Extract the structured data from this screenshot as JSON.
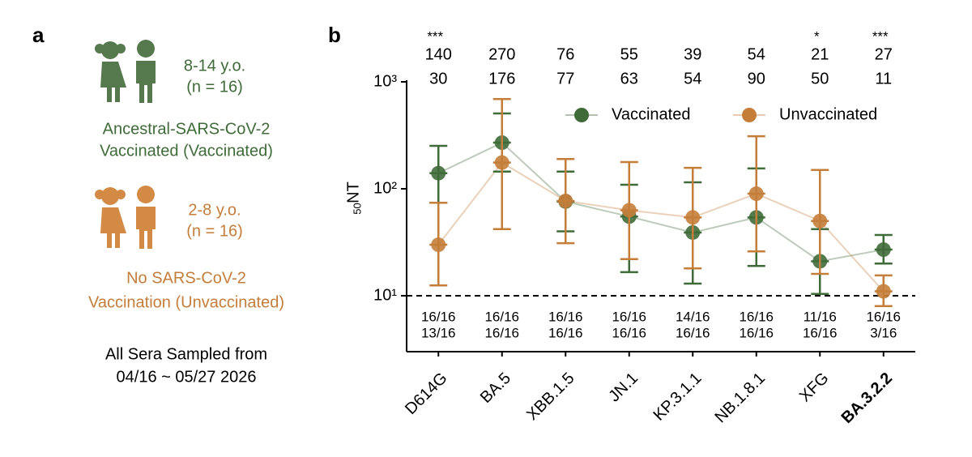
{
  "panel_a": {
    "label": "a",
    "group_1": {
      "age": "8-14 y.o.",
      "n": "(n = 16)",
      "desc": [
        "Ancestral-SARS-CoV-2",
        "Vaccinated (Vaccinated)"
      ]
    },
    "group_2": {
      "age": "2-8 y.o.",
      "n": "(n = 16)",
      "desc": [
        "No SARS-CoV-2",
        "Vaccination (Unvaccinated)"
      ]
    },
    "footer": [
      "All Sera Sampled from",
      "04/16 ~ 05/27 2026"
    ]
  },
  "chart_data": {
    "type": "line",
    "panel_label": "b",
    "ylabel": "NT",
    "ylabel_sub": "50",
    "log_y": true,
    "ylim": [
      3,
      1000
    ],
    "yticks": [
      {
        "value": 10,
        "label": "10¹"
      },
      {
        "value": 100,
        "label": "10²"
      },
      {
        "value": 1000,
        "label": "10³"
      }
    ],
    "threshold": 10,
    "legend": "upper right",
    "bold_category": 7,
    "categories": [
      "D614G",
      "BA.5",
      "XBB.1.5",
      "JN.1",
      "KP.3.1.1",
      "NB.1.8.1",
      "XFG",
      "BA.3.2.2"
    ],
    "significance": [
      "***",
      null,
      null,
      null,
      null,
      null,
      "*",
      "***"
    ],
    "series": [
      {
        "name": "Vaccinated",
        "color": "#3f6b38",
        "values": [
          140,
          270,
          76,
          55,
          39,
          54,
          21,
          27
        ],
        "lower": [
          74,
          145,
          40,
          16.6,
          13,
          19,
          10.4,
          20
        ],
        "upper": [
          252,
          506,
          145,
          109,
          115,
          155,
          42,
          37
        ],
        "positive": [
          "16/16",
          "16/16",
          "16/16",
          "16/16",
          "14/16",
          "16/16",
          "11/16",
          "16/16"
        ]
      },
      {
        "name": "Unvaccinated",
        "color": "#c47e3a",
        "values": [
          30,
          176,
          77,
          63,
          54,
          90,
          50,
          11
        ],
        "lower": [
          12.5,
          42,
          31,
          22,
          18,
          26,
          16,
          8
        ],
        "upper": [
          74,
          690,
          190,
          178,
          157,
          310,
          150,
          15.5
        ],
        "positive": [
          "13/16",
          "16/16",
          "16/16",
          "16/16",
          "16/16",
          "16/16",
          "16/16",
          "3/16"
        ]
      }
    ]
  }
}
